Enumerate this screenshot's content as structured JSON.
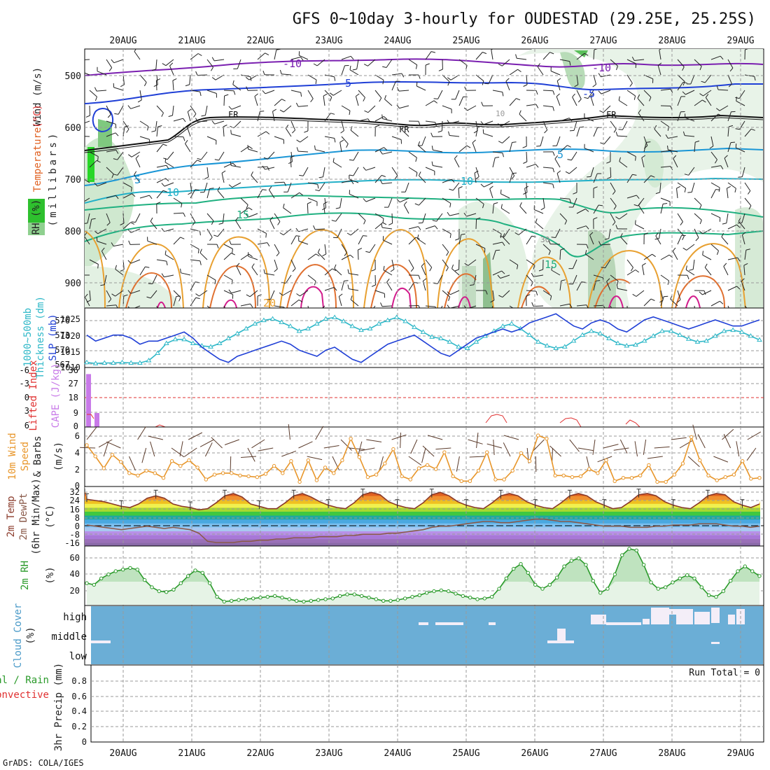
{
  "title": "GFS 0~10day 3-hourly for OUDESTAD (29.25E, 25.25S)",
  "footer": "GrADS: COLA/IGES",
  "dates": [
    "20AUG",
    "21AUG",
    "22AUG",
    "23AUG",
    "24AUG",
    "25AUG",
    "26AUG",
    "27AUG",
    "28AUG",
    "29AUG"
  ],
  "colors": {
    "grid": "#9a9a9a",
    "slp": "#1f3fd6",
    "thick": "#2fb8c8",
    "cape": "#c87ae8",
    "li": "#e03030",
    "wind": "#e8962a",
    "temp": "#8a3a2a",
    "dew": "#8a5a4a",
    "rh": "#2a9a2a",
    "cloud": "#6baed6",
    "cloud_gap": "#f4eef8",
    "precip": "#2a9a2a"
  },
  "panels": {
    "upper": {
      "ylabels": [
        {
          "text": "Wind (m/s)",
          "color": "#222222"
        },
        {
          "text": "Temperature",
          "color": "#e06020"
        },
        {
          "text": "(°C)",
          "color": "#e03030"
        },
        {
          "text": "RH (%)",
          "color": "#222222"
        }
      ],
      "axis_label": "(millibars)",
      "pressure_ticks": [
        "500",
        "600",
        "700",
        "800",
        "900"
      ],
      "contour_labels": [
        {
          "text": "-10",
          "color": "#7a1fb0"
        },
        {
          "text": "-10",
          "color": "#7a1fb0"
        },
        {
          "text": "-5",
          "color": "#1f3fd6"
        },
        {
          "text": "-5",
          "color": "#1f3fd6"
        },
        {
          "text": "FR",
          "color": "#111111"
        },
        {
          "text": "FR",
          "color": "#111111"
        },
        {
          "text": "FR",
          "color": "#111111"
        },
        {
          "text": "5",
          "color": "#1a96d6"
        },
        {
          "text": "5",
          "color": "#1a96d6"
        },
        {
          "text": "10",
          "color": "#22b0c8"
        },
        {
          "text": "10",
          "color": "#22b0c8"
        },
        {
          "text": "15",
          "color": "#1fb080"
        },
        {
          "text": "15",
          "color": "#1fb080"
        },
        {
          "text": "20",
          "color": "#e8a030"
        },
        {
          "text": "30",
          "color": "#888888"
        },
        {
          "text": "10",
          "color": "#999999"
        }
      ]
    },
    "slp": {
      "label_left": "1000~500mb",
      "label_left2": "Thickness (dm)",
      "label_right": "SLP (mb)",
      "thick_ticks": [
        "576",
        "573",
        "570",
        "567"
      ],
      "slp_ticks": [
        "1025",
        "1020",
        "1015",
        "1010"
      ]
    },
    "cape": {
      "label_li": "Lifted Index",
      "label_cape": "CAPE (J/kg)",
      "li_ticks": [
        "6",
        "3",
        "0",
        "-3",
        "-6"
      ],
      "cape_ticks": [
        "36",
        "27",
        "18",
        "9",
        "0"
      ]
    },
    "wind": {
      "label1": "10m Wind",
      "label2": "Speed",
      "label3": "& Barbs",
      "unit": "(m/s)",
      "ticks": [
        "6",
        "4",
        "2",
        "0"
      ]
    },
    "temp": {
      "label1": "2m Temp",
      "label2": "2m DewPt",
      "label3": "(6hr Min/Max)",
      "unit": "(°C)",
      "ticks": [
        "32",
        "24",
        "16",
        "8",
        "0",
        "-8",
        "-16"
      ]
    },
    "rh2m": {
      "label": "2m RH",
      "unit": "(%)",
      "ticks": [
        "60",
        "40",
        "20"
      ]
    },
    "cloud": {
      "label": "Cloud Cover",
      "unit": "(%)",
      "levels": [
        "high",
        "middle",
        "low"
      ]
    },
    "precip": {
      "label1": "Total / Rain",
      "label2": "Convective",
      "label3": "3hr Precip (mm)",
      "run_total": "Run Total = 0",
      "ticks": [
        "0.8",
        "0.6",
        "0.4",
        "0.2",
        "0"
      ]
    }
  },
  "chart_data": [
    {
      "type": "line",
      "name": "slp",
      "title": "",
      "series": [
        {
          "name": "SLP (mb)",
          "values": [
            1020,
            1018,
            1019,
            1020,
            1020,
            1019,
            1017,
            1018,
            1018,
            1019,
            1020,
            1021,
            1019,
            1016,
            1014,
            1012,
            1011,
            1013,
            1014,
            1015,
            1016,
            1017,
            1018,
            1017,
            1015,
            1014,
            1013,
            1015,
            1016,
            1014,
            1012,
            1011,
            1013,
            1015,
            1017,
            1018,
            1019,
            1020,
            1018,
            1016,
            1014,
            1013,
            1015,
            1017,
            1019,
            1020,
            1021,
            1022,
            1021,
            1022,
            1024,
            1025,
            1026,
            1027,
            1025,
            1023,
            1022,
            1024,
            1025,
            1024,
            1022,
            1021,
            1023,
            1025,
            1026,
            1025,
            1024,
            1023,
            1022,
            1023,
            1024,
            1025,
            1024,
            1023,
            1023,
            1024,
            1025
          ]
        },
        {
          "name": "Thickness (dm)",
          "values": [
            567.6,
            567.4,
            567.5,
            567.5,
            567.6,
            567.5,
            567.5,
            568.0,
            569.5,
            571.5,
            572.3,
            572.3,
            571.5,
            571.0,
            570.8,
            571.5,
            572.5,
            573.5,
            574.5,
            575.5,
            576.2,
            576.5,
            575.8,
            575.0,
            574.0,
            574.5,
            575.5,
            576.5,
            576.8,
            576.0,
            575.0,
            574.2,
            574.5,
            575.5,
            576.2,
            576.8,
            576.0,
            574.8,
            573.8,
            572.8,
            572.5,
            571.8,
            570.8,
            570.5,
            571.8,
            573.0,
            574.0,
            575.0,
            575.5,
            574.5,
            573.2,
            571.8,
            571.0,
            570.5,
            570.8,
            572.0,
            573.2,
            574.0,
            573.5,
            572.5,
            571.5,
            571.0,
            571.2,
            572.0,
            573.0,
            574.0,
            574.0,
            573.2,
            572.4,
            571.8,
            572.0,
            573.0,
            574.0,
            574.2,
            573.8,
            573.0,
            572.2
          ]
        }
      ],
      "ylim": [
        1010,
        1028
      ]
    },
    {
      "type": "line",
      "name": "wind10m",
      "title": "",
      "series": [
        {
          "name": "Speed (m/s)",
          "values": [
            5.0,
            3.6,
            2.1,
            3.8,
            2.9,
            1.5,
            1.2,
            1.8,
            1.5,
            0.9,
            3.0,
            2.4,
            3.1,
            2.2,
            0.7,
            1.3,
            1.5,
            1.5,
            1.2,
            1.1,
            1.0,
            1.4,
            2.4,
            1.5,
            3.0,
            0.4,
            3.1,
            0.6,
            2.2,
            1.5,
            3.1,
            5.8,
            3.5,
            1.0,
            1.3,
            2.7,
            4.5,
            1.1,
            0.7,
            2.1,
            2.5,
            2.0,
            4.1,
            1.1,
            0.5,
            0.5,
            1.8,
            4.1,
            0.7,
            0.7,
            1.8,
            4.0,
            3.0,
            6.2,
            5.8,
            1.2,
            1.2,
            1.0,
            1.1,
            2.0,
            1.5,
            3.1,
            0.5,
            0.9,
            0.9,
            1.2,
            2.5,
            0.4,
            0.4,
            1.3,
            2.7,
            6.0,
            3.1,
            1.2,
            0.6,
            1.0,
            1.3,
            3.0,
            0.8,
            0.9
          ]
        }
      ],
      "ylim": [
        0,
        7
      ]
    },
    {
      "type": "line",
      "name": "temp2m",
      "title": "",
      "series": [
        {
          "name": "2m Temp",
          "values": [
            24,
            23,
            22,
            20,
            18,
            17,
            20,
            25,
            27,
            25,
            20,
            18,
            17,
            15,
            16,
            21,
            27,
            29,
            26,
            20,
            18,
            16,
            16,
            21,
            27,
            29,
            26,
            22,
            19,
            17,
            16,
            21,
            28,
            30,
            28,
            22,
            19,
            17,
            16,
            21,
            28,
            30,
            27,
            22,
            19,
            17,
            16,
            21,
            27,
            29,
            27,
            22,
            19,
            17,
            16,
            21,
            27,
            29,
            27,
            22,
            19,
            16,
            17,
            22,
            28,
            29,
            27,
            22,
            19,
            17,
            16,
            21,
            27,
            29,
            28,
            22,
            19,
            17,
            20
          ]
        },
        {
          "name": "2m DewPt",
          "values": [
            2,
            1,
            0,
            -1,
            -2,
            -1,
            0,
            1,
            0,
            -1,
            0,
            -1,
            -2,
            -5,
            -12,
            -13,
            -13,
            -13,
            -12,
            -12,
            -11,
            -11,
            -10,
            -10,
            -9,
            -9,
            -9,
            -8,
            -8,
            -8,
            -7,
            -7,
            -6,
            -6,
            -6,
            -5,
            -5,
            -4,
            -3,
            -2,
            0,
            1,
            1,
            2,
            3,
            4,
            5,
            5,
            4,
            4,
            5,
            6,
            7,
            7,
            6,
            5,
            5,
            4,
            3,
            2,
            1,
            1,
            1,
            0,
            0,
            0,
            1,
            1,
            2,
            2,
            2,
            3,
            3,
            3,
            2,
            1,
            1,
            0,
            1
          ]
        }
      ],
      "ylim": [
        -16,
        32
      ]
    },
    {
      "type": "area",
      "name": "rh2m",
      "title": "",
      "series": [
        {
          "name": "2m RH (%)",
          "values": [
            27,
            25,
            33,
            38,
            42,
            44,
            46,
            44,
            31,
            22,
            17,
            16,
            19,
            27,
            36,
            43,
            40,
            27,
            10,
            4,
            5,
            6,
            7,
            8,
            9,
            10,
            11,
            9,
            7,
            5,
            4,
            5,
            6,
            7,
            8,
            11,
            13,
            13,
            11,
            9,
            7,
            5,
            5,
            6,
            8,
            10,
            12,
            15,
            17,
            18,
            17,
            14,
            11,
            9,
            7,
            8,
            10,
            20,
            33,
            45,
            51,
            40,
            25,
            20,
            25,
            34,
            48,
            55,
            58,
            50,
            30,
            15,
            20,
            38,
            62,
            70,
            68,
            50,
            28,
            20,
            22,
            28,
            33,
            37,
            33,
            22,
            12,
            10,
            17,
            30,
            42,
            48,
            42,
            36
          ]
        }
      ],
      "ylim": [
        0,
        70
      ]
    },
    {
      "type": "bar",
      "name": "cape",
      "title": "",
      "values": [
        34,
        9,
        0,
        0,
        0,
        0
      ],
      "ylim": [
        0,
        36
      ]
    }
  ]
}
